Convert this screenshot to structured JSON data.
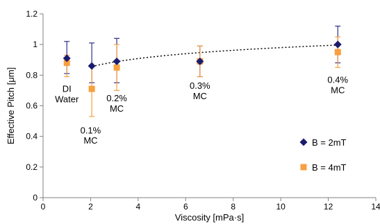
{
  "chart_data": {
    "type": "scatter",
    "title": "",
    "xlabel": "Viscosity [mPa·s]",
    "ylabel": "Effective Pitch [μm]",
    "xlim": [
      0,
      14
    ],
    "ylim": [
      0,
      1.2
    ],
    "xticks": [
      0,
      2,
      4,
      6,
      8,
      10,
      12,
      14
    ],
    "yticks": [
      0,
      0.2,
      0.4,
      0.6,
      0.8,
      1,
      1.2
    ],
    "xtick_labels": [
      "0",
      "2",
      "4",
      "6",
      "8",
      "10",
      "12",
      "14"
    ],
    "ytick_labels": [
      "0",
      "0.2",
      "0.4",
      "0.6",
      "0.8",
      "1",
      "1.2"
    ],
    "grid": false,
    "legend_position": "right",
    "series": [
      {
        "name": "B = 2mT",
        "marker": "diamond",
        "color": "#1b1b6e",
        "error_color": "#2e2e8c",
        "points": [
          {
            "x": 1.0,
            "y": 0.91,
            "err_low": 0.1,
            "err_high": 0.11
          },
          {
            "x": 2.05,
            "y": 0.86,
            "err_low": 0.11,
            "err_high": 0.15
          },
          {
            "x": 3.1,
            "y": 0.89,
            "err_low": 0.14,
            "err_high": 0.15
          },
          {
            "x": 6.6,
            "y": 0.89,
            "err_low": 0.1,
            "err_high": 0.1
          },
          {
            "x": 12.4,
            "y": 1.0,
            "err_low": 0.12,
            "err_high": 0.12
          }
        ]
      },
      {
        "name": "B = 4mT",
        "marker": "square",
        "color": "#f7a040",
        "error_color": "#f7a040",
        "points": [
          {
            "x": 1.0,
            "y": 0.88,
            "err_low": 0.09,
            "err_high": 0.05
          },
          {
            "x": 2.05,
            "y": 0.71,
            "err_low": 0.18,
            "err_high": 0.15
          },
          {
            "x": 3.1,
            "y": 0.85,
            "err_low": 0.15,
            "err_high": 0.15
          },
          {
            "x": 6.6,
            "y": 0.89,
            "err_low": 0.1,
            "err_high": 0.1
          },
          {
            "x": 12.4,
            "y": 0.95,
            "err_low": 0.1,
            "err_high": 0.1
          }
        ]
      }
    ],
    "trendline": {
      "style": "dotted",
      "color": "#000000",
      "x_start": 2.05,
      "x_end": 12.4,
      "equation_form": "logarithmic",
      "a": 0.078,
      "b": 0.8
    },
    "annotations": [
      {
        "lines": [
          "DI",
          "Water"
        ],
        "x": 1.0,
        "y": 0.69
      },
      {
        "lines": [
          "0.1%",
          "MC"
        ],
        "x": 2.0,
        "y": 0.42
      },
      {
        "lines": [
          "0.2%",
          "MC"
        ],
        "x": 3.1,
        "y": 0.63
      },
      {
        "lines": [
          "0.3%",
          "MC"
        ],
        "x": 6.6,
        "y": 0.71
      },
      {
        "lines": [
          "0.4%",
          "MC"
        ],
        "x": 12.4,
        "y": 0.75
      }
    ]
  }
}
